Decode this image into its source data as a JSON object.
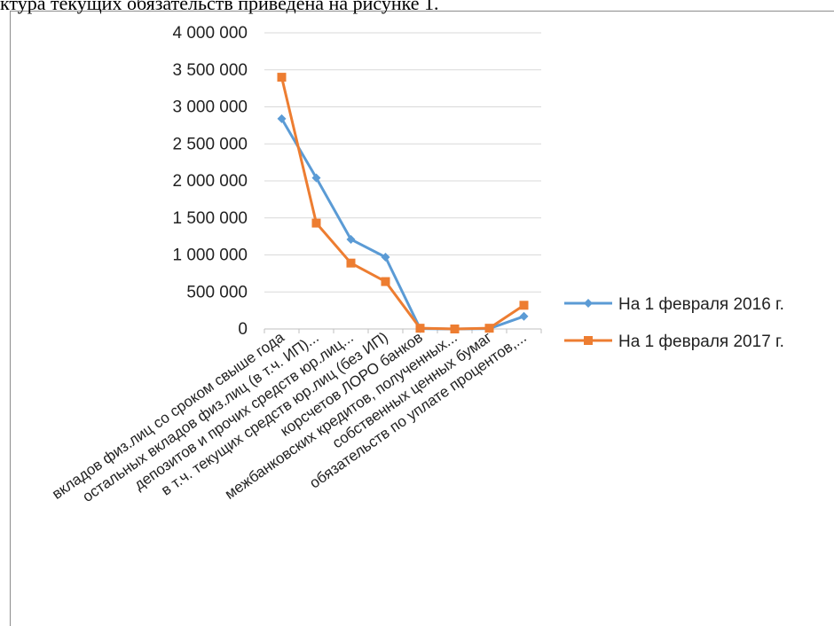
{
  "caption": "ктура текущих обязательств приведена на рисунке 1.",
  "chart_data": {
    "type": "line",
    "title": "",
    "xlabel": "",
    "ylabel": "",
    "ylim": [
      0,
      4000000
    ],
    "y_ticks": [
      0,
      500000,
      1000000,
      1500000,
      2000000,
      2500000,
      3000000,
      3500000,
      4000000
    ],
    "y_tick_labels": [
      "0",
      "500 000",
      "1 000 000",
      "1 500 000",
      "2 000 000",
      "2 500 000",
      "3 000 000",
      "3 500 000",
      "4 000 000"
    ],
    "grid": true,
    "legend_position": "right",
    "categories": [
      "вкладов физ.лиц со сроком свыше года",
      "остальных вкладов физ.лиц (в т.ч. ИП)...",
      "депозитов и прочих средств юр.лиц...",
      "в т.ч. текущих средств юр.лиц (без ИП)",
      "корсчетов ЛОРО банков",
      "межбанковских кредитов, полученных...",
      "собственных ценных бумаг",
      "обязательств по уплате процентов,..."
    ],
    "series": [
      {
        "name": "На 1 февраля 2016 г.",
        "color": "#5B9BD5",
        "marker": "diamond",
        "values": [
          2840000,
          2040000,
          1210000,
          970000,
          5000,
          0,
          5000,
          170000
        ]
      },
      {
        "name": "На 1 февраля 2017 г.",
        "color": "#ED7D31",
        "marker": "square",
        "values": [
          3400000,
          1430000,
          890000,
          640000,
          10000,
          0,
          10000,
          320000
        ]
      }
    ]
  }
}
